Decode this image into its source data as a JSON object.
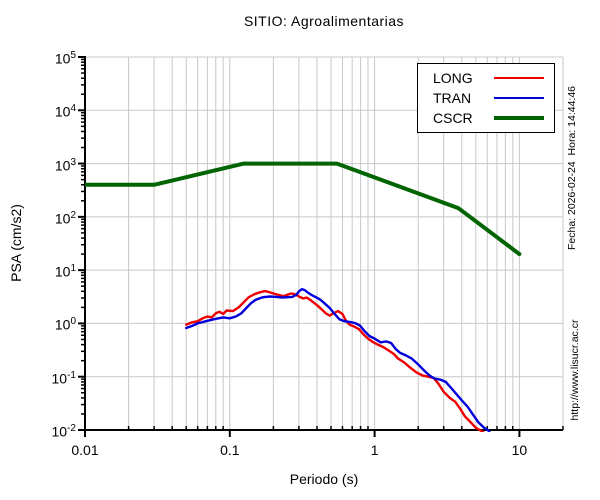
{
  "page": {
    "right_margin": {
      "datetime_label": "Fecha: 2026-02-24  Hora: 14:44:46",
      "url_label": "http://www.lisucr.ac.cr"
    }
  },
  "chart_data": {
    "type": "line",
    "title": "SITIO: Agroalimentarias",
    "xlabel": "Periodo (s)",
    "ylabel": "PSA (cm/s2)",
    "xscale": "log",
    "yscale": "log",
    "xlim": [
      0.01,
      20
    ],
    "ylim": [
      0.01,
      100000
    ],
    "x_major_ticks": [
      0.01,
      0.1,
      1,
      10
    ],
    "x_major_tick_labels": [
      "0.01",
      "0.1",
      "1",
      "10"
    ],
    "y_major_tick_exponents": [
      5,
      4,
      3,
      2,
      1,
      0,
      -1,
      -2
    ],
    "grid": {
      "vertical": "major+minor",
      "horizontal": "major-only",
      "on": true
    },
    "legend_position": "top-right-inside",
    "colors": {
      "grid": "#c8c8c8",
      "axis": "#000000",
      "long": "#ee0000",
      "tran": "#0000dd",
      "cscr": "#006400"
    },
    "series": [
      {
        "name": "LONG",
        "color": "#ee0000",
        "width": 2.4,
        "points": [
          [
            0.05,
            0.95
          ],
          [
            0.055,
            1.05
          ],
          [
            0.06,
            1.1
          ],
          [
            0.065,
            1.25
          ],
          [
            0.07,
            1.35
          ],
          [
            0.075,
            1.3
          ],
          [
            0.08,
            1.55
          ],
          [
            0.085,
            1.65
          ],
          [
            0.09,
            1.5
          ],
          [
            0.095,
            1.75
          ],
          [
            0.105,
            1.7
          ],
          [
            0.115,
            2.0
          ],
          [
            0.125,
            2.5
          ],
          [
            0.135,
            3.1
          ],
          [
            0.15,
            3.6
          ],
          [
            0.165,
            3.9
          ],
          [
            0.175,
            4.05
          ],
          [
            0.185,
            3.9
          ],
          [
            0.2,
            3.65
          ],
          [
            0.22,
            3.4
          ],
          [
            0.235,
            3.25
          ],
          [
            0.25,
            3.45
          ],
          [
            0.265,
            3.65
          ],
          [
            0.28,
            3.55
          ],
          [
            0.3,
            3.2
          ],
          [
            0.32,
            2.95
          ],
          [
            0.34,
            3.05
          ],
          [
            0.36,
            2.75
          ],
          [
            0.38,
            2.45
          ],
          [
            0.4,
            2.2
          ],
          [
            0.43,
            1.85
          ],
          [
            0.46,
            1.55
          ],
          [
            0.49,
            1.4
          ],
          [
            0.52,
            1.55
          ],
          [
            0.56,
            1.7
          ],
          [
            0.6,
            1.5
          ],
          [
            0.63,
            1.15
          ],
          [
            0.67,
            0.95
          ],
          [
            0.72,
            0.88
          ],
          [
            0.78,
            0.78
          ],
          [
            0.84,
            0.62
          ],
          [
            0.9,
            0.52
          ],
          [
            0.97,
            0.45
          ],
          [
            1.05,
            0.4
          ],
          [
            1.15,
            0.36
          ],
          [
            1.25,
            0.31
          ],
          [
            1.35,
            0.27
          ],
          [
            1.45,
            0.22
          ],
          [
            1.6,
            0.185
          ],
          [
            1.75,
            0.15
          ],
          [
            1.95,
            0.12
          ],
          [
            2.15,
            0.105
          ],
          [
            2.35,
            0.1
          ],
          [
            2.55,
            0.095
          ],
          [
            2.75,
            0.075
          ],
          [
            3.0,
            0.052
          ],
          [
            3.3,
            0.04
          ],
          [
            3.6,
            0.034
          ],
          [
            3.9,
            0.025
          ],
          [
            4.2,
            0.018
          ],
          [
            4.6,
            0.014
          ],
          [
            5.0,
            0.011
          ],
          [
            5.5,
            0.0095
          ],
          [
            6.0,
            0.008
          ]
        ]
      },
      {
        "name": "TRAN",
        "color": "#0000dd",
        "width": 2.4,
        "points": [
          [
            0.05,
            0.82
          ],
          [
            0.055,
            0.9
          ],
          [
            0.06,
            1.0
          ],
          [
            0.07,
            1.12
          ],
          [
            0.08,
            1.22
          ],
          [
            0.09,
            1.3
          ],
          [
            0.1,
            1.25
          ],
          [
            0.11,
            1.35
          ],
          [
            0.12,
            1.55
          ],
          [
            0.13,
            1.95
          ],
          [
            0.14,
            2.4
          ],
          [
            0.15,
            2.75
          ],
          [
            0.16,
            2.95
          ],
          [
            0.17,
            3.1
          ],
          [
            0.19,
            3.2
          ],
          [
            0.21,
            3.15
          ],
          [
            0.23,
            3.05
          ],
          [
            0.25,
            3.1
          ],
          [
            0.27,
            3.15
          ],
          [
            0.29,
            3.5
          ],
          [
            0.3,
            4.0
          ],
          [
            0.315,
            4.4
          ],
          [
            0.33,
            4.2
          ],
          [
            0.345,
            3.8
          ],
          [
            0.365,
            3.45
          ],
          [
            0.39,
            3.15
          ],
          [
            0.42,
            2.8
          ],
          [
            0.45,
            2.4
          ],
          [
            0.49,
            1.95
          ],
          [
            0.53,
            1.5
          ],
          [
            0.57,
            1.2
          ],
          [
            0.62,
            1.1
          ],
          [
            0.67,
            1.07
          ],
          [
            0.73,
            1.02
          ],
          [
            0.79,
            0.92
          ],
          [
            0.85,
            0.72
          ],
          [
            0.92,
            0.58
          ],
          [
            1.0,
            0.52
          ],
          [
            1.1,
            0.44
          ],
          [
            1.2,
            0.46
          ],
          [
            1.3,
            0.43
          ],
          [
            1.4,
            0.33
          ],
          [
            1.5,
            0.28
          ],
          [
            1.65,
            0.25
          ],
          [
            1.8,
            0.22
          ],
          [
            2.0,
            0.17
          ],
          [
            2.2,
            0.13
          ],
          [
            2.4,
            0.105
          ],
          [
            2.6,
            0.092
          ],
          [
            2.85,
            0.088
          ],
          [
            3.1,
            0.08
          ],
          [
            3.4,
            0.06
          ],
          [
            3.7,
            0.046
          ],
          [
            4.0,
            0.036
          ],
          [
            4.4,
            0.027
          ],
          [
            4.8,
            0.019
          ],
          [
            5.2,
            0.014
          ],
          [
            5.7,
            0.011
          ],
          [
            6.2,
            0.0095
          ]
        ]
      },
      {
        "name": "CSCR",
        "color": "#006400",
        "width": 4,
        "points": [
          [
            0.01,
            400
          ],
          [
            0.03,
            400
          ],
          [
            0.125,
            1000
          ],
          [
            0.55,
            1000
          ],
          [
            3.8,
            145
          ],
          [
            10,
            20
          ]
        ]
      }
    ]
  }
}
